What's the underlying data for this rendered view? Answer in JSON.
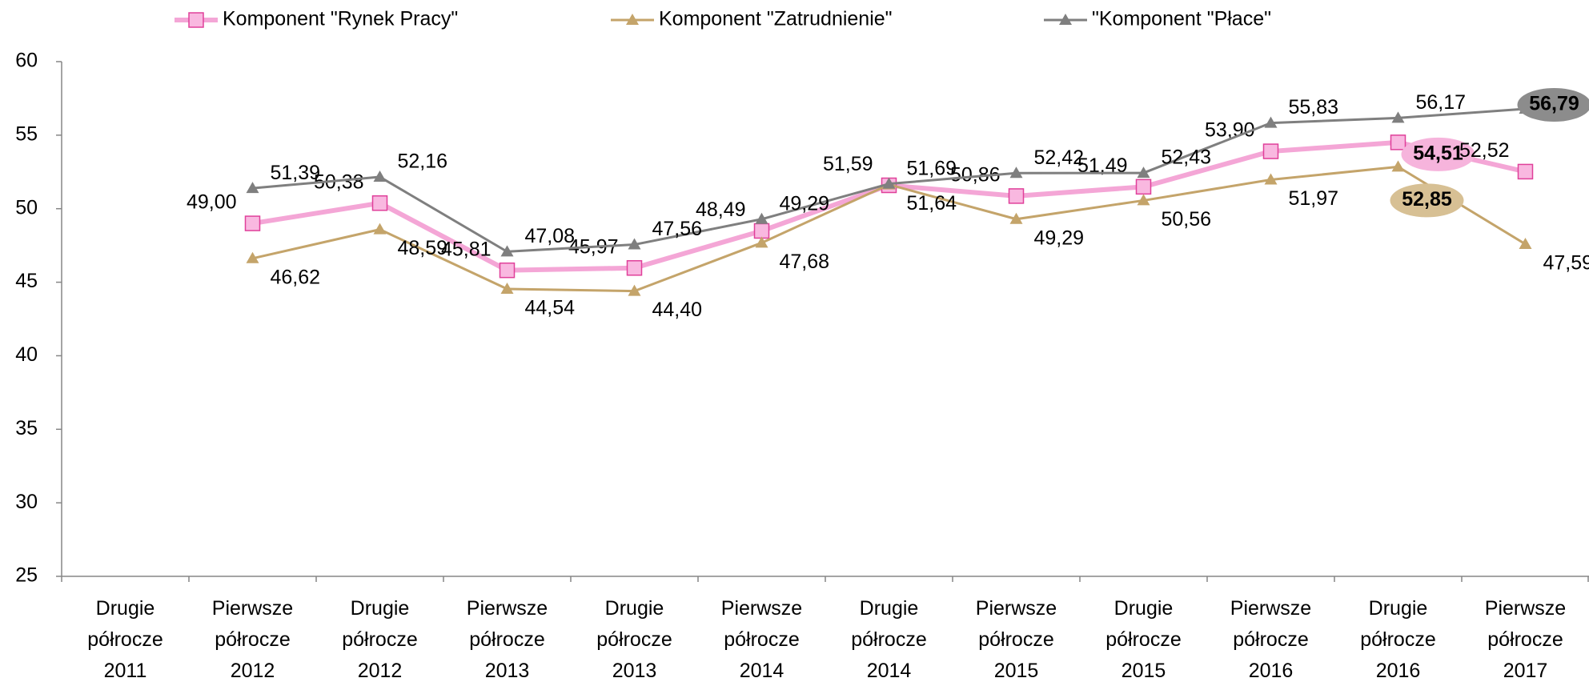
{
  "chart_data": {
    "type": "line",
    "categories": [
      "Drugie półrocze 2011",
      "Pierwsze półrocze 2012",
      "Drugie półrocze 2012",
      "Pierwsze półrocze 2013",
      "Drugie półrocze 2013",
      "Pierwsze półrocze 2014",
      "Drugie półrocze 2014",
      "Pierwsze półrocze 2015",
      "Drugie półrocze 2015",
      "Pierwsze półrocze 2016",
      "Drugie półrocze 2016",
      "Pierwsze półrocze 2017"
    ],
    "series": [
      {
        "name": "Komponent \"Rynek Pracy\"",
        "color": "#f4a6d6",
        "marker": "square",
        "highlight": 10,
        "values": [
          null,
          49.0,
          50.38,
          45.81,
          45.97,
          48.49,
          51.59,
          50.86,
          51.49,
          53.9,
          54.51,
          52.52
        ],
        "value_labels": [
          null,
          "49,00",
          "50,38",
          "45,81",
          "45,97",
          "48,49",
          "51,59",
          "50,86",
          "51,49",
          "53,90",
          "54,51",
          "52,52"
        ]
      },
      {
        "name": "Komponent \"Zatrudnienie\"",
        "color": "#c4a46a",
        "marker": "triangle",
        "highlight": 10,
        "values": [
          null,
          46.62,
          48.59,
          44.54,
          44.4,
          47.68,
          51.64,
          49.29,
          50.56,
          51.97,
          52.85,
          47.59
        ],
        "value_labels": [
          null,
          "46,62",
          "48,59",
          "44,54",
          "44,40",
          "47,68",
          "51,64",
          "49,29",
          "50,56",
          "51,97",
          "52,85",
          "47,59"
        ]
      },
      {
        "name": "\"Komponent \"Płace\"",
        "color": "#7f7f7f",
        "marker": "triangle",
        "highlight": 11,
        "values": [
          null,
          51.39,
          52.16,
          47.08,
          47.56,
          49.29,
          51.69,
          52.42,
          52.43,
          55.83,
          56.17,
          56.79
        ],
        "value_labels": [
          null,
          "51,39",
          "52,16",
          "47,08",
          "47,56",
          "49,29",
          "51,69",
          "52,42",
          "52,43",
          "55,83",
          "56,17",
          "56,79"
        ]
      }
    ],
    "ylim": [
      25,
      60
    ],
    "yticks": [
      25,
      30,
      35,
      40,
      45,
      50,
      55,
      60
    ],
    "legend": "top"
  }
}
